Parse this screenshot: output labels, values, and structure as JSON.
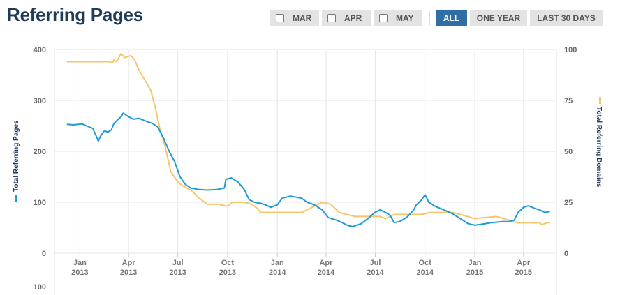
{
  "page": {
    "title": "Referring Pages"
  },
  "filters": [
    {
      "label": "MAR",
      "type": "checkbox",
      "checked": false
    },
    {
      "label": "APR",
      "type": "checkbox",
      "checked": false
    },
    {
      "label": "MAY",
      "type": "checkbox",
      "checked": false
    },
    {
      "label": "ALL",
      "type": "button",
      "active": true
    },
    {
      "label": "ONE YEAR",
      "type": "button",
      "active": false
    },
    {
      "label": "LAST 30 DAYS",
      "type": "button",
      "active": false
    }
  ],
  "colors": {
    "pages": "#1e9ad6",
    "domains": "#f7c46c",
    "title": "#1f3b57",
    "active": "#2f6fa6"
  },
  "chart_data": {
    "type": "line",
    "title": "",
    "grid": true,
    "x_ticks": [
      {
        "x": "2013-01-01",
        "label": [
          "Jan",
          "2013"
        ]
      },
      {
        "x": "2013-04-01",
        "label": [
          "Apr",
          "2013"
        ]
      },
      {
        "x": "2013-07-01",
        "label": [
          "Jul",
          "2013"
        ]
      },
      {
        "x": "2013-10-01",
        "label": [
          "Oct",
          "2013"
        ]
      },
      {
        "x": "2014-01-01",
        "label": [
          "Jan",
          "2014"
        ]
      },
      {
        "x": "2014-04-01",
        "label": [
          "Apr",
          "2014"
        ]
      },
      {
        "x": "2014-07-01",
        "label": [
          "Jul",
          "2014"
        ]
      },
      {
        "x": "2014-10-01",
        "label": [
          "Oct",
          "2014"
        ]
      },
      {
        "x": "2015-01-01",
        "label": [
          "Jan",
          "2015"
        ]
      },
      {
        "x": "2015-04-01",
        "label": [
          "Apr",
          "2015"
        ]
      }
    ],
    "y_left": {
      "label": "Total Referring Pages",
      "ylim": [
        0,
        400
      ],
      "ticks": [
        0,
        100,
        200,
        300,
        400
      ]
    },
    "y_right": {
      "label": "Total Referring Domains",
      "ylim": [
        0,
        100
      ],
      "ticks": [
        0,
        25,
        50,
        75,
        100
      ]
    },
    "navigator_label": "100",
    "series": [
      {
        "name": "Total Referring Pages",
        "axis": "left",
        "points": [
          [
            "2012-12-08",
            253
          ],
          [
            "2012-12-20",
            252
          ],
          [
            "2013-01-05",
            254
          ],
          [
            "2013-01-18",
            248
          ],
          [
            "2013-01-25",
            245
          ],
          [
            "2013-02-01",
            228
          ],
          [
            "2013-02-04",
            220
          ],
          [
            "2013-02-08",
            230
          ],
          [
            "2013-02-15",
            240
          ],
          [
            "2013-02-22",
            238
          ],
          [
            "2013-02-28",
            242
          ],
          [
            "2013-03-05",
            255
          ],
          [
            "2013-03-12",
            262
          ],
          [
            "2013-03-18",
            268
          ],
          [
            "2013-03-22",
            275
          ],
          [
            "2013-04-01",
            268
          ],
          [
            "2013-04-10",
            263
          ],
          [
            "2013-04-20",
            265
          ],
          [
            "2013-05-01",
            260
          ],
          [
            "2013-05-15",
            255
          ],
          [
            "2013-05-25",
            248
          ],
          [
            "2013-06-05",
            225
          ],
          [
            "2013-06-15",
            200
          ],
          [
            "2013-06-25",
            180
          ],
          [
            "2013-07-05",
            150
          ],
          [
            "2013-07-15",
            135
          ],
          [
            "2013-07-25",
            128
          ],
          [
            "2013-08-10",
            125
          ],
          [
            "2013-08-25",
            124
          ],
          [
            "2013-09-10",
            125
          ],
          [
            "2013-09-25",
            128
          ],
          [
            "2013-09-28",
            145
          ],
          [
            "2013-10-08",
            148
          ],
          [
            "2013-10-20",
            140
          ],
          [
            "2013-11-01",
            125
          ],
          [
            "2013-11-10",
            105
          ],
          [
            "2013-11-20",
            100
          ],
          [
            "2013-12-01",
            98
          ],
          [
            "2013-12-10",
            95
          ],
          [
            "2013-12-20",
            90
          ],
          [
            "2014-01-01",
            95
          ],
          [
            "2014-01-10",
            108
          ],
          [
            "2014-01-25",
            112
          ],
          [
            "2014-02-05",
            110
          ],
          [
            "2014-02-15",
            108
          ],
          [
            "2014-02-25",
            100
          ],
          [
            "2014-03-10",
            95
          ],
          [
            "2014-03-25",
            85
          ],
          [
            "2014-04-05",
            70
          ],
          [
            "2014-04-20",
            65
          ],
          [
            "2014-05-01",
            60
          ],
          [
            "2014-05-10",
            55
          ],
          [
            "2014-05-20",
            52
          ],
          [
            "2014-06-05",
            58
          ],
          [
            "2014-06-20",
            70
          ],
          [
            "2014-06-30",
            80
          ],
          [
            "2014-07-10",
            85
          ],
          [
            "2014-07-20",
            80
          ],
          [
            "2014-07-28",
            75
          ],
          [
            "2014-08-05",
            60
          ],
          [
            "2014-08-15",
            62
          ],
          [
            "2014-08-28",
            70
          ],
          [
            "2014-09-10",
            85
          ],
          [
            "2014-09-15",
            95
          ],
          [
            "2014-09-25",
            105
          ],
          [
            "2014-10-01",
            115
          ],
          [
            "2014-10-08",
            100
          ],
          [
            "2014-10-20",
            92
          ],
          [
            "2014-11-05",
            85
          ],
          [
            "2014-11-20",
            78
          ],
          [
            "2014-12-05",
            68
          ],
          [
            "2014-12-20",
            58
          ],
          [
            "2015-01-01",
            55
          ],
          [
            "2015-01-15",
            57
          ],
          [
            "2015-02-01",
            60
          ],
          [
            "2015-02-20",
            62
          ],
          [
            "2015-03-05",
            62
          ],
          [
            "2015-03-15",
            65
          ],
          [
            "2015-03-22",
            80
          ],
          [
            "2015-04-01",
            90
          ],
          [
            "2015-04-10",
            93
          ],
          [
            "2015-04-22",
            88
          ],
          [
            "2015-05-01",
            85
          ],
          [
            "2015-05-10",
            80
          ],
          [
            "2015-05-20",
            82
          ]
        ]
      },
      {
        "name": "Total Referring Domains",
        "axis": "right",
        "points": [
          [
            "2012-12-08",
            94
          ],
          [
            "2013-02-25",
            94
          ],
          [
            "2013-03-02",
            93.5
          ],
          [
            "2013-03-05",
            95
          ],
          [
            "2013-03-08",
            94
          ],
          [
            "2013-03-12",
            95
          ],
          [
            "2013-03-18",
            98
          ],
          [
            "2013-03-25",
            96
          ],
          [
            "2013-04-05",
            97
          ],
          [
            "2013-04-12",
            95
          ],
          [
            "2013-04-20",
            90
          ],
          [
            "2013-05-01",
            85
          ],
          [
            "2013-05-12",
            80
          ],
          [
            "2013-05-20",
            72
          ],
          [
            "2013-05-28",
            62
          ],
          [
            "2013-06-08",
            52
          ],
          [
            "2013-06-18",
            40
          ],
          [
            "2013-07-01",
            35
          ],
          [
            "2013-07-10",
            33
          ],
          [
            "2013-07-25",
            31
          ],
          [
            "2013-08-10",
            27
          ],
          [
            "2013-08-25",
            24
          ],
          [
            "2013-09-15",
            24
          ],
          [
            "2013-10-01",
            23
          ],
          [
            "2013-10-10",
            25
          ],
          [
            "2013-11-01",
            25
          ],
          [
            "2013-11-15",
            24
          ],
          [
            "2013-11-25",
            22
          ],
          [
            "2013-12-01",
            20
          ],
          [
            "2014-01-15",
            20
          ],
          [
            "2014-02-15",
            20
          ],
          [
            "2014-03-10",
            23
          ],
          [
            "2014-03-25",
            25
          ],
          [
            "2014-04-10",
            24
          ],
          [
            "2014-04-25",
            20
          ],
          [
            "2014-05-10",
            19
          ],
          [
            "2014-05-25",
            18
          ],
          [
            "2014-07-10",
            18
          ],
          [
            "2014-07-20",
            17
          ],
          [
            "2014-08-05",
            19
          ],
          [
            "2014-09-01",
            19
          ],
          [
            "2014-09-25",
            19
          ],
          [
            "2014-10-10",
            20
          ],
          [
            "2014-11-20",
            20
          ],
          [
            "2014-12-05",
            19
          ],
          [
            "2015-01-01",
            17
          ],
          [
            "2015-02-10",
            18
          ],
          [
            "2015-03-20",
            15
          ],
          [
            "2015-05-01",
            15
          ],
          [
            "2015-05-05",
            14
          ],
          [
            "2015-05-15",
            15
          ],
          [
            "2015-05-20",
            15
          ]
        ]
      }
    ]
  }
}
